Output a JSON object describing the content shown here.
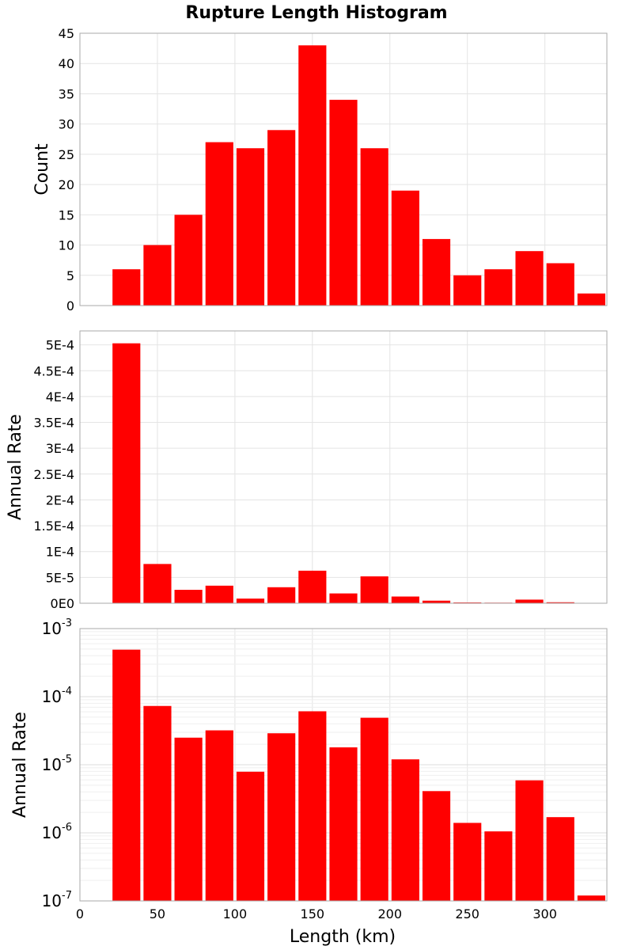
{
  "chart_data": {
    "type": "bar",
    "title": "Rupture Length Histogram",
    "xlabel": "Length (km)",
    "xlim": [
      0,
      340
    ],
    "x_ticks": [
      "0",
      "50",
      "100",
      "150",
      "200",
      "250",
      "300"
    ],
    "x_tick_values": [
      0,
      50,
      100,
      150,
      200,
      250,
      300
    ],
    "bin_width": 20,
    "bin_centers": [
      30,
      50,
      70,
      90,
      110,
      130,
      150,
      170,
      190,
      210,
      230,
      250,
      270,
      290,
      310,
      330
    ],
    "bar_color": "#ff0000",
    "grid": true,
    "panels": [
      {
        "ylabel": "Count",
        "yscale": "linear",
        "ylim": [
          0,
          45
        ],
        "y_ticks": [
          "0",
          "5",
          "10",
          "15",
          "20",
          "25",
          "30",
          "35",
          "40",
          "45"
        ],
        "y_tick_values": [
          0,
          5,
          10,
          15,
          20,
          25,
          30,
          35,
          40,
          45
        ],
        "values": [
          6,
          10,
          15,
          27,
          26,
          29,
          43,
          34,
          26,
          19,
          11,
          5,
          6,
          9,
          7,
          2
        ]
      },
      {
        "ylabel": "Annual Rate",
        "yscale": "linear",
        "ylim": [
          0,
          0.000527
        ],
        "y_ticks": [
          "0E0",
          "5E-5",
          "1E-4",
          "1.5E-4",
          "2E-4",
          "2.5E-4",
          "3E-4",
          "3.5E-4",
          "4E-4",
          "4.5E-4",
          "5E-4"
        ],
        "y_tick_values": [
          0,
          5e-05,
          0.0001,
          0.00015,
          0.0002,
          0.00025,
          0.0003,
          0.00035,
          0.0004,
          0.00045,
          0.0005
        ],
        "values": [
          0.000503,
          7.6e-05,
          2.6e-05,
          3.4e-05,
          9e-06,
          3.1e-05,
          6.3e-05,
          1.9e-05,
          5.2e-05,
          1.3e-05,
          5e-06,
          1.5e-06,
          1.1e-06,
          7e-06,
          1.9e-06,
          1e-07
        ]
      },
      {
        "ylabel": "Annual Rate",
        "yscale": "log",
        "ylim": [
          1e-07,
          0.001
        ],
        "y_ticks": [
          {
            "base": "10",
            "exp": "-7"
          },
          {
            "base": "10",
            "exp": "-6"
          },
          {
            "base": "10",
            "exp": "-5"
          },
          {
            "base": "10",
            "exp": "-4"
          },
          {
            "base": "10",
            "exp": "-3"
          }
        ],
        "y_tick_values": [
          1e-07,
          1e-06,
          1e-05,
          0.0001,
          0.001
        ],
        "values": [
          0.00049,
          7.3e-05,
          2.5e-05,
          3.2e-05,
          7.9e-06,
          2.9e-05,
          6.1e-05,
          1.8e-05,
          4.9e-05,
          1.2e-05,
          4.1e-06,
          1.4e-06,
          1.05e-06,
          5.9e-06,
          1.7e-06,
          1.2e-07
        ]
      }
    ]
  }
}
